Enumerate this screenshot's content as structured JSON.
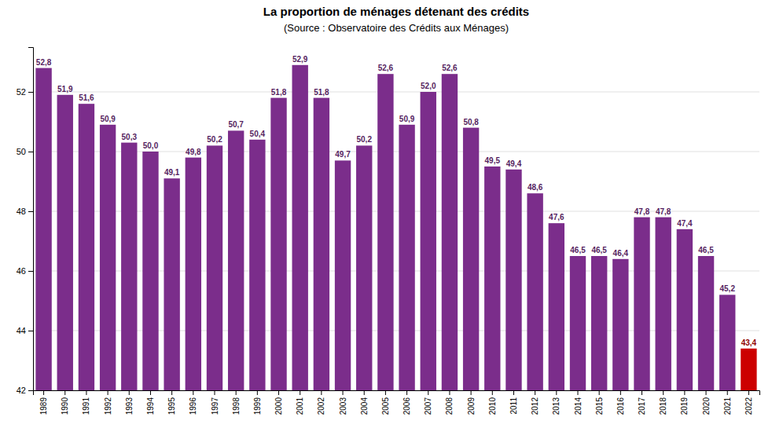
{
  "chart_data": {
    "type": "bar",
    "title": "La proportion de ménages détenant des crédits",
    "subtitle": "(Source : Observatoire des Crédits aux Ménages)",
    "categories": [
      "1989",
      "1990",
      "1991",
      "1992",
      "1993",
      "1994",
      "1995",
      "1996",
      "1997",
      "1998",
      "1999",
      "2000",
      "2001",
      "2002",
      "2003",
      "2004",
      "2005",
      "2006",
      "2007",
      "2008",
      "2009",
      "2010",
      "2011",
      "2012",
      "2013",
      "2014",
      "2015",
      "2016",
      "2017",
      "2018",
      "2019",
      "2020",
      "2021",
      "2022"
    ],
    "values": [
      52.8,
      51.9,
      51.6,
      50.9,
      50.3,
      50.0,
      49.1,
      49.8,
      50.2,
      50.7,
      50.4,
      51.8,
      52.9,
      51.8,
      49.7,
      50.2,
      52.6,
      50.9,
      52.0,
      52.6,
      50.8,
      49.5,
      49.4,
      48.6,
      47.6,
      46.5,
      46.5,
      46.4,
      47.8,
      47.8,
      47.4,
      46.5,
      45.2,
      43.4
    ],
    "value_labels": [
      "52,8",
      "51,9",
      "51,6",
      "50,9",
      "50,3",
      "50,0",
      "49,1",
      "49,8",
      "50,2",
      "50,7",
      "50,4",
      "51,8",
      "52,9",
      "51,8",
      "49,7",
      "50,2",
      "52,6",
      "50,9",
      "52,0",
      "52,6",
      "50,8",
      "49,5",
      "49,4",
      "48,6",
      "47,6",
      "46,5",
      "46,5",
      "46,4",
      "47,8",
      "47,8",
      "47,4",
      "46,5",
      "45,2",
      "43,4"
    ],
    "colors": [
      "#7b2d8b",
      "#7b2d8b",
      "#7b2d8b",
      "#7b2d8b",
      "#7b2d8b",
      "#7b2d8b",
      "#7b2d8b",
      "#7b2d8b",
      "#7b2d8b",
      "#7b2d8b",
      "#7b2d8b",
      "#7b2d8b",
      "#7b2d8b",
      "#7b2d8b",
      "#7b2d8b",
      "#7b2d8b",
      "#7b2d8b",
      "#7b2d8b",
      "#7b2d8b",
      "#7b2d8b",
      "#7b2d8b",
      "#7b2d8b",
      "#7b2d8b",
      "#7b2d8b",
      "#7b2d8b",
      "#7b2d8b",
      "#7b2d8b",
      "#7b2d8b",
      "#7b2d8b",
      "#7b2d8b",
      "#7b2d8b",
      "#7b2d8b",
      "#7b2d8b",
      "#cc0000"
    ],
    "ylim": [
      42,
      53.5
    ],
    "yticks": [
      42,
      44,
      46,
      48,
      50,
      52
    ],
    "grid": true,
    "data_labels": true
  }
}
